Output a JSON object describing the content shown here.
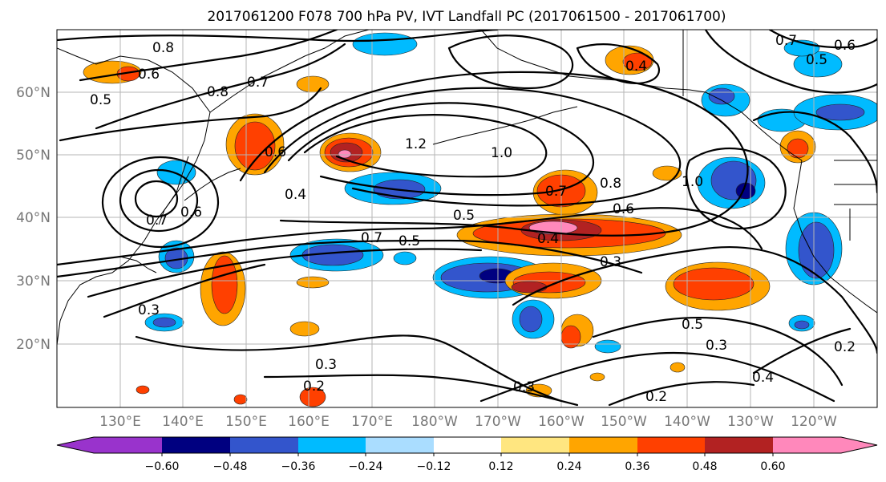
{
  "title": "2017061200 F078 700 hPa PV, IVT Landfall PC (2017061500 - 2017061700)",
  "lat_labels": [
    "60°N",
    "50°N",
    "40°N",
    "30°N",
    "20°N"
  ],
  "lon_labels": [
    "130°E",
    "140°E",
    "150°E",
    "160°E",
    "170°E",
    "180°W",
    "170°W",
    "160°W",
    "150°W",
    "140°W",
    "130°W",
    "120°W"
  ],
  "colorbar": {
    "ticks": [
      "−0.60",
      "−0.48",
      "−0.36",
      "−0.24",
      "−0.12",
      "0.12",
      "0.24",
      "0.36",
      "0.48",
      "0.60"
    ],
    "colors": [
      "#9933cc",
      "#000080",
      "#3355cc",
      "#00bbff",
      "#aaddff",
      "#ffffff",
      "#ffe680",
      "#ffa500",
      "#ff4000",
      "#b22222",
      "#ff88bb"
    ]
  },
  "contour_labels": [
    {
      "text": "0.8"
    },
    {
      "text": "0.6"
    },
    {
      "text": "0.5"
    },
    {
      "text": "0.8"
    },
    {
      "text": "0.7"
    },
    {
      "text": "0.6"
    },
    {
      "text": "1.2"
    },
    {
      "text": "1.0"
    },
    {
      "text": "0.4"
    },
    {
      "text": "0.7"
    },
    {
      "text": "0.6"
    },
    {
      "text": "0.5"
    },
    {
      "text": "0.7"
    },
    {
      "text": "0.8"
    },
    {
      "text": "0.6"
    },
    {
      "text": "0.4"
    },
    {
      "text": "0.5"
    },
    {
      "text": "0.7"
    },
    {
      "text": "0.3"
    },
    {
      "text": "0.3"
    },
    {
      "text": "0.5"
    },
    {
      "text": "0.3"
    },
    {
      "text": "0.2"
    },
    {
      "text": "0.3"
    },
    {
      "text": "0.2"
    },
    {
      "text": "0.4"
    },
    {
      "text": "0.2"
    },
    {
      "text": "1.0"
    },
    {
      "text": "0.7"
    },
    {
      "text": "0.6"
    },
    {
      "text": "0.5"
    },
    {
      "text": "0.4"
    },
    {
      "text": "0.3"
    }
  ]
}
